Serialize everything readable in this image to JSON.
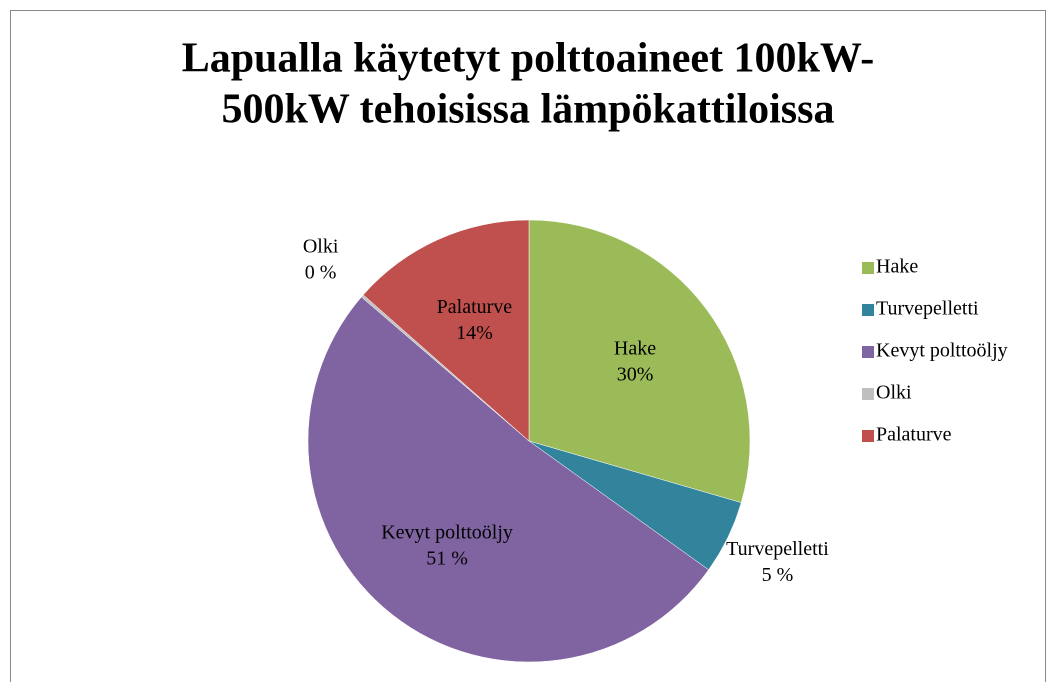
{
  "chart_data": {
    "type": "pie",
    "title": [
      "Lapualla käytetyt polttoaineet 100kW-",
      "500kW tehoisissa lämpökattiloissa"
    ],
    "categories": [
      "Hake",
      "Turvepelletti",
      "Kevyt polttoöljy",
      "Olki",
      "Palaturve"
    ],
    "values": [
      29.5,
      5.4,
      51.4,
      0.2,
      13.5
    ],
    "value_labels": [
      "30%",
      "5 %",
      "51 %",
      "0 %",
      "14%"
    ],
    "colors": [
      "#9bbb59",
      "#31849b",
      "#8064a2",
      "#bfbfbf",
      "#c0504d"
    ],
    "legend": "right"
  }
}
